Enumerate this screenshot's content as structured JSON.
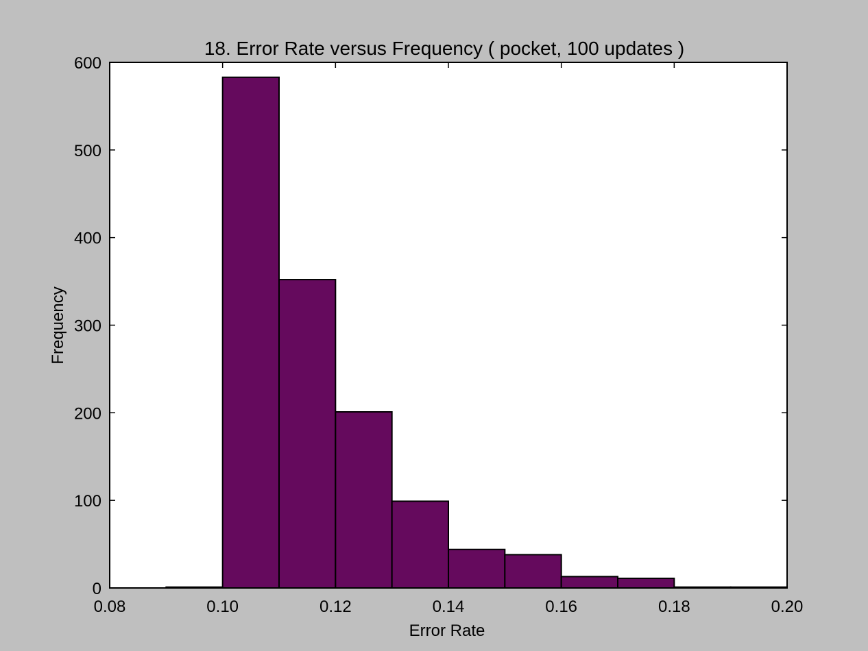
{
  "chart_data": {
    "type": "bar",
    "title": "18. Error Rate versus Frequency ( pocket, 100 updates )",
    "xlabel": "Error Rate",
    "ylabel": "Frequency",
    "xlim": [
      0.08,
      0.2
    ],
    "ylim": [
      0,
      600
    ],
    "xticks": [
      "0.08",
      "0.10",
      "0.12",
      "0.14",
      "0.16",
      "0.18",
      "0.20"
    ],
    "yticks": [
      "0",
      "100",
      "200",
      "300",
      "400",
      "500",
      "600"
    ],
    "bins": [
      {
        "x0": 0.09,
        "x1": 0.1,
        "value": 1
      },
      {
        "x0": 0.1,
        "x1": 0.11,
        "value": 583
      },
      {
        "x0": 0.11,
        "x1": 0.12,
        "value": 352
      },
      {
        "x0": 0.12,
        "x1": 0.13,
        "value": 201
      },
      {
        "x0": 0.13,
        "x1": 0.14,
        "value": 99
      },
      {
        "x0": 0.14,
        "x1": 0.15,
        "value": 44
      },
      {
        "x0": 0.15,
        "x1": 0.16,
        "value": 38
      },
      {
        "x0": 0.16,
        "x1": 0.17,
        "value": 13
      },
      {
        "x0": 0.17,
        "x1": 0.18,
        "value": 11
      },
      {
        "x0": 0.18,
        "x1": 0.19,
        "value": 1
      },
      {
        "x0": 0.19,
        "x1": 0.2,
        "value": 1
      }
    ],
    "bar_color": "#650a5d",
    "grid": false,
    "legend": "none"
  }
}
